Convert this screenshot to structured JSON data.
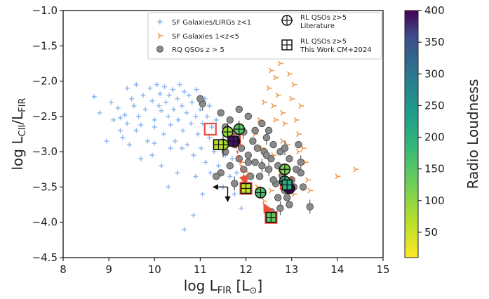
{
  "chart_data": {
    "type": "scatter",
    "xlim": [
      8,
      15
    ],
    "ylim": [
      -4.5,
      -1.0
    ],
    "xticks": [
      "8",
      "9",
      "10",
      "11",
      "12",
      "13",
      "14",
      "15"
    ],
    "yticks": [
      "−1.0",
      "−1.5",
      "−2.0",
      "−2.5",
      "−3.0",
      "−3.5",
      "−4.0",
      "−4.5"
    ],
    "xlabel": "log L_FIR [L_☉]",
    "ylabel": "log L_CII/L_FIR",
    "grid": false,
    "legend_position": "top-right",
    "colorbar": {
      "label": "Radio Loudness",
      "range": [
        10,
        400
      ],
      "ticks": [
        "50",
        "100",
        "150",
        "200",
        "250",
        "300",
        "350",
        "400"
      ],
      "colormap": "viridis_r"
    },
    "series": [
      {
        "name": "SF Galaxies/LIRGs z<1",
        "marker": "plus",
        "color": "#8fb8f0",
        "points": [
          [
            8.68,
            -2.22
          ],
          [
            8.8,
            -2.45
          ],
          [
            8.95,
            -2.85
          ],
          [
            9.05,
            -2.3
          ],
          [
            9.1,
            -2.55
          ],
          [
            9.2,
            -2.38
          ],
          [
            9.25,
            -2.7
          ],
          [
            9.3,
            -2.8
          ],
          [
            9.35,
            -2.48
          ],
          [
            9.4,
            -2.6
          ],
          [
            9.45,
            -2.9
          ],
          [
            9.5,
            -2.25
          ],
          [
            9.55,
            -2.35
          ],
          [
            9.6,
            -2.7
          ],
          [
            9.6,
            -2.05
          ],
          [
            9.65,
            -2.5
          ],
          [
            9.7,
            -2.62
          ],
          [
            9.75,
            -2.2
          ],
          [
            9.8,
            -2.4
          ],
          [
            9.85,
            -2.85
          ],
          [
            9.9,
            -2.1
          ],
          [
            9.95,
            -2.28
          ],
          [
            10.0,
            -2.55
          ],
          [
            10.0,
            -2.65
          ],
          [
            10.05,
            -2.05
          ],
          [
            10.1,
            -2.35
          ],
          [
            10.12,
            -2.18
          ],
          [
            10.15,
            -2.42
          ],
          [
            10.2,
            -2.75
          ],
          [
            10.22,
            -2.08
          ],
          [
            10.25,
            -2.3
          ],
          [
            10.3,
            -2.5
          ],
          [
            10.32,
            -2.2
          ],
          [
            10.35,
            -2.62
          ],
          [
            10.4,
            -2.12
          ],
          [
            10.42,
            -2.4
          ],
          [
            10.45,
            -2.85
          ],
          [
            10.5,
            -2.25
          ],
          [
            10.52,
            -2.55
          ],
          [
            10.55,
            -2.05
          ],
          [
            10.6,
            -2.35
          ],
          [
            10.62,
            -2.7
          ],
          [
            10.65,
            -2.15
          ],
          [
            10.7,
            -2.45
          ],
          [
            10.72,
            -2.9
          ],
          [
            10.75,
            -2.2
          ],
          [
            10.8,
            -2.6
          ],
          [
            10.82,
            -2.3
          ],
          [
            10.85,
            -3.05
          ],
          [
            10.9,
            -2.5
          ],
          [
            10.92,
            -2.12
          ],
          [
            10.95,
            -2.75
          ],
          [
            11.0,
            -2.4
          ],
          [
            11.02,
            -2.95
          ],
          [
            11.05,
            -2.6
          ],
          [
            11.1,
            -2.25
          ],
          [
            11.12,
            -3.15
          ],
          [
            11.15,
            -2.5
          ],
          [
            11.2,
            -2.8
          ],
          [
            11.22,
            -3.3
          ],
          [
            11.25,
            -2.65
          ],
          [
            11.3,
            -3.0
          ],
          [
            11.35,
            -2.55
          ],
          [
            11.4,
            -3.2
          ],
          [
            11.45,
            -2.85
          ],
          [
            11.5,
            -3.5
          ],
          [
            11.55,
            -3.05
          ],
          [
            11.6,
            -2.7
          ],
          [
            11.65,
            -3.35
          ],
          [
            11.7,
            -3.1
          ],
          [
            11.75,
            -3.6
          ],
          [
            11.8,
            -3.3
          ],
          [
            11.85,
            -2.9
          ],
          [
            11.9,
            -3.8
          ],
          [
            11.95,
            -3.45
          ],
          [
            10.85,
            -3.9
          ],
          [
            10.5,
            -3.3
          ],
          [
            9.95,
            -3.05
          ],
          [
            10.3,
            -3.5
          ],
          [
            10.65,
            -4.1
          ],
          [
            11.05,
            -3.6
          ],
          [
            10.15,
            -3.2
          ],
          [
            9.7,
            -3.1
          ],
          [
            10.9,
            -3.35
          ],
          [
            11.2,
            -2.35
          ],
          [
            10.6,
            -2.95
          ],
          [
            10.35,
            -2.95
          ],
          [
            9.4,
            -2.1
          ],
          [
            9.25,
            -2.52
          ],
          [
            10.0,
            -2.88
          ]
        ]
      },
      {
        "name": "SF Galaxies 1<z<5",
        "marker": "tri_right",
        "color": "#ee9a4d",
        "points": [
          [
            12.4,
            -2.3
          ],
          [
            12.5,
            -2.1
          ],
          [
            12.55,
            -1.85
          ],
          [
            12.6,
            -2.35
          ],
          [
            12.65,
            -1.95
          ],
          [
            12.7,
            -2.2
          ],
          [
            12.75,
            -1.75
          ],
          [
            12.8,
            -2.45
          ],
          [
            12.85,
            -2.6
          ],
          [
            12.9,
            -2.9
          ],
          [
            12.95,
            -1.9
          ],
          [
            13.0,
            -2.25
          ],
          [
            13.05,
            -2.05
          ],
          [
            13.1,
            -2.55
          ],
          [
            13.15,
            -2.75
          ],
          [
            13.2,
            -2.35
          ],
          [
            13.25,
            -2.95
          ],
          [
            13.3,
            -3.15
          ],
          [
            13.35,
            -3.4
          ],
          [
            13.4,
            -3.55
          ],
          [
            12.3,
            -2.55
          ],
          [
            12.2,
            -2.75
          ],
          [
            12.35,
            -2.95
          ],
          [
            12.45,
            -3.25
          ],
          [
            12.6,
            -3.05
          ],
          [
            12.75,
            -3.3
          ],
          [
            12.9,
            -3.45
          ],
          [
            13.05,
            -3.6
          ],
          [
            13.1,
            -3.25
          ],
          [
            14.0,
            -3.35
          ],
          [
            14.4,
            -3.25
          ],
          [
            13.15,
            -3.0
          ],
          [
            12.65,
            -2.55
          ],
          [
            12.55,
            -3.55
          ],
          [
            12.4,
            -3.7
          ],
          [
            12.25,
            -3.5
          ],
          [
            12.05,
            -3.3
          ],
          [
            11.95,
            -3.45
          ],
          [
            11.9,
            -3.15
          ],
          [
            12.8,
            -2.85
          ]
        ]
      },
      {
        "name": "RQ QSOs z > 5",
        "marker": "circle",
        "color": "#8a8a8a",
        "points": [
          [
            11.05,
            -2.32
          ],
          [
            11.0,
            -2.25
          ],
          [
            11.45,
            -2.45
          ],
          [
            11.55,
            -2.65
          ],
          [
            11.65,
            -2.55
          ],
          [
            11.85,
            -2.4
          ],
          [
            11.95,
            -2.72
          ],
          [
            12.05,
            -2.5
          ],
          [
            12.15,
            -2.85
          ],
          [
            12.25,
            -2.95
          ],
          [
            12.35,
            -2.6
          ],
          [
            12.4,
            -3.0
          ],
          [
            12.45,
            -2.8
          ],
          [
            12.55,
            -3.1
          ],
          [
            12.6,
            -2.9
          ],
          [
            12.7,
            -3.2
          ],
          [
            12.75,
            -3.0
          ],
          [
            12.8,
            -3.35
          ],
          [
            12.85,
            -2.95
          ],
          [
            12.95,
            -3.1
          ],
          [
            13.0,
            -3.4
          ],
          [
            13.1,
            -3.25
          ],
          [
            13.2,
            -3.3
          ],
          [
            13.25,
            -3.5
          ],
          [
            13.4,
            -3.78
          ],
          [
            12.2,
            -3.15
          ],
          [
            12.1,
            -3.35
          ],
          [
            12.05,
            -3.05
          ],
          [
            11.95,
            -3.25
          ],
          [
            11.85,
            -3.1
          ],
          [
            11.75,
            -3.45
          ],
          [
            11.65,
            -3.2
          ],
          [
            11.55,
            -3.0
          ],
          [
            11.45,
            -3.3
          ],
          [
            11.35,
            -3.35
          ],
          [
            12.3,
            -3.35
          ],
          [
            12.5,
            -3.25
          ],
          [
            12.65,
            -3.45
          ],
          [
            12.85,
            -3.55
          ],
          [
            12.9,
            -3.65
          ],
          [
            13.05,
            -3.5
          ],
          [
            12.45,
            -3.05
          ],
          [
            12.35,
            -3.2
          ],
          [
            12.2,
            -2.7
          ],
          [
            12.6,
            -3.4
          ],
          [
            13.15,
            -2.9
          ],
          [
            12.7,
            -3.65
          ],
          [
            12.55,
            -3.85
          ],
          [
            12.75,
            -3.8
          ],
          [
            12.95,
            -3.75
          ],
          [
            11.75,
            -2.9
          ],
          [
            11.9,
            -2.95
          ],
          [
            12.5,
            -2.7
          ],
          [
            12.05,
            -3.15
          ],
          [
            13.2,
            -3.15
          ]
        ]
      },
      {
        "name": "RL QSOs z>5 Literature",
        "marker": "circle_plus",
        "points": [
          {
            "x": 11.5,
            "y": -2.9,
            "rl": 80,
            "xerr": 0.2,
            "yerr": 0.18
          },
          {
            "x": 11.6,
            "y": -2.72,
            "rl": 90,
            "xerr": 0.12,
            "yerr": 0.12
          },
          {
            "x": 11.85,
            "y": -2.68,
            "rl": 150,
            "xerr": 0.12,
            "yerr": 0.12
          },
          {
            "x": 12.32,
            "y": -3.58,
            "rl": 160,
            "xerr": 0.0,
            "yerr": 0.0
          },
          {
            "x": 12.85,
            "y": -3.25,
            "rl": 120,
            "xerr": 0.0,
            "yerr": 0.0
          },
          {
            "x": 12.95,
            "y": -3.52,
            "rl": 400,
            "xerr": 0.0,
            "yerr": 0.0
          },
          {
            "x": 11.75,
            "y": -2.85,
            "rl": 380,
            "xerr": 0.0,
            "yerr": 0.0
          },
          {
            "x": 12.85,
            "y": -3.42,
            "rl": 210,
            "xerr": 0.0,
            "yerr": 0.0
          }
        ]
      },
      {
        "name": "RL QSOs z>5 This Work CM+2024",
        "marker": "square_plus",
        "points": [
          {
            "x": 11.4,
            "y": -2.9,
            "rl": 60
          },
          {
            "x": 11.72,
            "y": -2.85,
            "rl": 390
          },
          {
            "x": 12.0,
            "y": -3.52,
            "rl": 55
          },
          {
            "x": 12.55,
            "y": -3.93,
            "rl": 140
          },
          {
            "x": 12.9,
            "y": -3.47,
            "rl": 210
          }
        ]
      }
    ],
    "highlight_squares": [
      {
        "x": 11.22,
        "y": -2.68
      },
      {
        "x": 11.75,
        "y": -2.83
      },
      {
        "x": 12.0,
        "y": -3.52
      },
      {
        "x": 12.55,
        "y": -3.93
      },
      {
        "x": 12.88,
        "y": -3.45
      }
    ],
    "upper_limit_arrows": [
      {
        "x": 11.6,
        "y": -3.5,
        "direction": "left"
      },
      {
        "x": 11.6,
        "y": -3.5,
        "direction": "down"
      }
    ],
    "red_arrows": [
      {
        "from": [
          11.75,
          -2.85
        ],
        "to": [
          12.0,
          -3.45
        ],
        "style": "dashed"
      },
      {
        "from": [
          12.55,
          -3.93
        ],
        "to": [
          12.4,
          -3.75
        ],
        "style": "solid"
      }
    ],
    "legend": [
      "SF Galaxies/LIRGs z<1",
      "SF Galaxies 1<z<5",
      "RQ QSOs z > 5",
      "RL QSOs z>5",
      "Literature",
      "RL QSOs z>5",
      "This Work CM+2024"
    ]
  }
}
